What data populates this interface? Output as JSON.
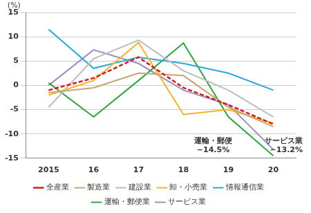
{
  "chart_data": {
    "type": "line",
    "y_label": "(%)",
    "categories": [
      "2015",
      "16",
      "17",
      "18",
      "19",
      "20"
    ],
    "series": [
      {
        "name": "全産業",
        "color": "#d7191c",
        "line_style": "dashed",
        "values": [
          -1,
          1.5,
          5.8,
          -0.5,
          -4,
          -8
        ]
      },
      {
        "name": "製造業",
        "color": "#c8a46e",
        "line_style": "solid",
        "values": [
          -1.5,
          -0.5,
          2.5,
          2,
          -4.5,
          -8.5
        ]
      },
      {
        "name": "建設業",
        "color": "#bdbdbd",
        "line_style": "solid",
        "values": [
          -4.5,
          5.5,
          9.3,
          3,
          -1,
          -6.5
        ]
      },
      {
        "name": "卸・小売業",
        "color": "#f5b41e",
        "line_style": "solid",
        "values": [
          -2,
          1,
          8.8,
          -6,
          -5,
          -7.8
        ]
      },
      {
        "name": "情報通信業",
        "color": "#29a8e0",
        "line_style": "solid",
        "values": [
          11.5,
          3.5,
          5.8,
          4.5,
          2.5,
          -1
        ]
      },
      {
        "name": "運輸・郵便業",
        "color": "#2ca640",
        "line_style": "solid",
        "values": [
          0.5,
          -6.5,
          1,
          8.7,
          -6.5,
          -14.5
        ]
      },
      {
        "name": "サービス業",
        "color": "#9b8ec4",
        "line_style": "solid",
        "values": [
          0,
          7.3,
          4.5,
          -1,
          -4,
          -13.2
        ]
      }
    ],
    "annotations": [
      [
        "運輸・郵便",
        "−14.5%"
      ],
      [
        "サービス業",
        "−13.2%"
      ]
    ],
    "ylim": [
      -15,
      15
    ],
    "yticks": [
      -15,
      -10,
      -5,
      0,
      5,
      10,
      15
    ],
    "grid": true,
    "legend": "bottom"
  }
}
